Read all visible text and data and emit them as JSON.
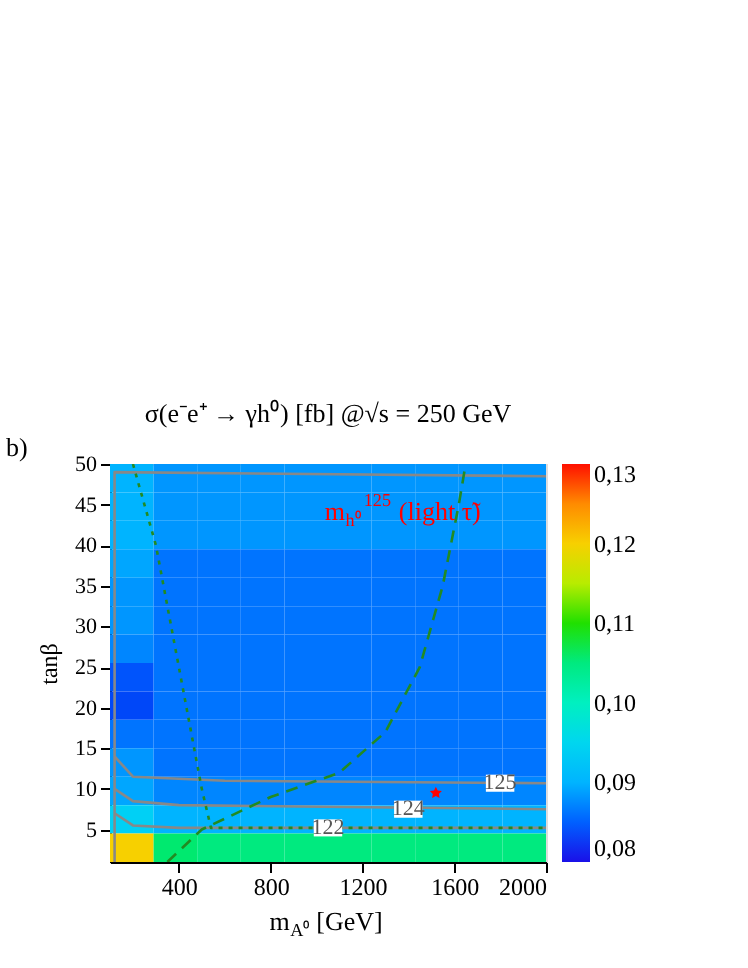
{
  "chart_data": {
    "type": "heatmap",
    "title": "σ(e⁻e⁺ → γh⁰) [fb] @√s = 250 GeV",
    "xlabel": "m$_{A⁰}$ [GeV]",
    "ylabel": "tanβ",
    "x": [
      195,
      385,
      575,
      765,
      955,
      1145,
      1335,
      1525,
      1715,
      1905
    ],
    "y": [
      48.25,
      44.75,
      41.25,
      37.75,
      34.25,
      30.75,
      27.25,
      23.75,
      20.25,
      16.75,
      13.25,
      9.75,
      6.25,
      2.75
    ],
    "cells": [
      [
        0.09,
        0.088,
        0.088,
        0.088,
        0.088,
        0.088,
        0.088,
        0.088,
        0.088,
        0.088
      ],
      [
        0.09,
        0.088,
        0.088,
        0.088,
        0.088,
        0.088,
        0.088,
        0.088,
        0.088,
        0.088
      ],
      [
        0.09,
        0.088,
        0.088,
        0.088,
        0.088,
        0.088,
        0.088,
        0.088,
        0.088,
        0.088
      ],
      [
        0.089,
        0.086,
        0.086,
        0.086,
        0.086,
        0.086,
        0.086,
        0.086,
        0.086,
        0.086
      ],
      [
        0.088,
        0.086,
        0.086,
        0.086,
        0.086,
        0.086,
        0.086,
        0.086,
        0.086,
        0.086
      ],
      [
        0.088,
        0.086,
        0.086,
        0.086,
        0.086,
        0.086,
        0.086,
        0.086,
        0.086,
        0.086
      ],
      [
        0.087,
        0.086,
        0.086,
        0.086,
        0.086,
        0.086,
        0.086,
        0.086,
        0.086,
        0.086
      ],
      [
        0.084,
        0.086,
        0.086,
        0.086,
        0.086,
        0.086,
        0.086,
        0.086,
        0.086,
        0.086
      ],
      [
        0.083,
        0.086,
        0.086,
        0.086,
        0.086,
        0.086,
        0.086,
        0.086,
        0.086,
        0.086
      ],
      [
        0.086,
        0.086,
        0.086,
        0.086,
        0.086,
        0.086,
        0.086,
        0.086,
        0.086,
        0.086
      ],
      [
        0.088,
        0.086,
        0.086,
        0.086,
        0.086,
        0.086,
        0.086,
        0.086,
        0.086,
        0.086
      ],
      [
        0.089,
        0.087,
        0.087,
        0.087,
        0.087,
        0.087,
        0.087,
        0.087,
        0.087,
        0.087
      ],
      [
        0.094,
        0.09,
        0.09,
        0.09,
        0.09,
        0.09,
        0.09,
        0.09,
        0.09,
        0.09
      ],
      [
        0.12,
        0.106,
        0.105,
        0.105,
        0.105,
        0.105,
        0.105,
        0.105,
        0.105,
        0.105
      ]
    ],
    "clim": [
      0.08,
      0.13
    ],
    "cticks": [
      {
        "value": 0.08,
        "label": "0,08"
      },
      {
        "value": 0.09,
        "label": "0,09"
      },
      {
        "value": 0.1,
        "label": "0,10"
      },
      {
        "value": 0.11,
        "label": "0,11"
      },
      {
        "value": 0.12,
        "label": "0,12"
      },
      {
        "value": 0.13,
        "label": "0,13"
      }
    ],
    "xlim": [
      100,
      2000
    ],
    "xticks": [
      400,
      800,
      1200,
      1600,
      2000
    ],
    "ylim": [
      1,
      50
    ],
    "yticks": [
      5,
      10,
      15,
      20,
      25,
      30,
      35,
      40,
      45,
      50
    ],
    "series": [
      {
        "type": "line",
        "color": "#888888",
        "x": [
          120,
          200,
          600,
          2000
        ],
        "values": [
          14,
          11.5,
          11,
          10.7
        ]
      },
      {
        "type": "line",
        "color": "#888888",
        "x": [
          120,
          200,
          400,
          2000
        ],
        "values": [
          10,
          8.5,
          8,
          7.5
        ]
      },
      {
        "type": "line",
        "color": "#888888",
        "x": [
          120,
          200,
          400,
          2000
        ],
        "values": [
          7,
          5.5,
          5.2,
          5.2
        ]
      },
      {
        "type": "line",
        "color": "#888888",
        "x": [
          120,
          120,
          2000
        ],
        "values": [
          1,
          49,
          48.5
        ]
      },
      {
        "type": "line",
        "color": "#228b22",
        "line_style": "dashed",
        "x": [
          350,
          500,
          800,
          1100,
          1300,
          1450,
          1550,
          1620,
          1650
        ],
        "values": [
          1,
          5,
          9,
          12,
          17,
          25,
          35,
          45,
          50
        ]
      },
      {
        "type": "line",
        "color": "#228b22",
        "line_style": "dotted",
        "x": [
          200,
          300,
          400,
          500,
          540,
          2000
        ],
        "values": [
          50,
          40,
          25,
          10,
          5.2,
          5.2
        ]
      },
      {
        "type": "scatter",
        "color": "#ff0000",
        "marker": "star",
        "x": [
          1520
        ],
        "values": [
          9.5
        ]
      }
    ],
    "annotations": [
      "b)",
      "m$_{h⁰}$$^{125}$ (light τ̃)",
      {
        "text": "125",
        "x": 1800,
        "y": 10.7
      },
      {
        "text": "124",
        "x": 1400,
        "y": 7.5
      },
      {
        "text": "122",
        "x": 1050,
        "y": 5.2
      }
    ],
    "grid": false
  }
}
